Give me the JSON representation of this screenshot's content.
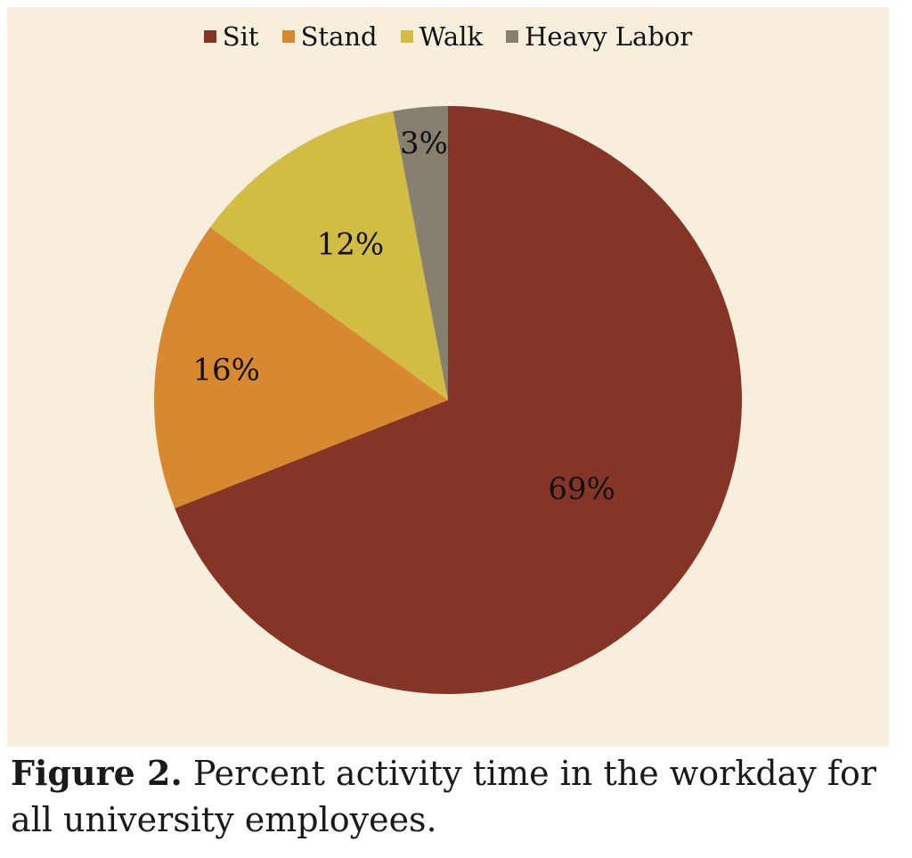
{
  "chart_data": {
    "type": "pie",
    "categories": [
      "Sit",
      "Stand",
      "Walk",
      "Heavy Labor"
    ],
    "values": [
      69,
      16,
      12,
      3
    ],
    "data_labels": [
      "69%",
      "16%",
      "12%",
      "3%"
    ],
    "colors": [
      "#843526",
      "#d8892f",
      "#d1bd44",
      "#878070"
    ],
    "legend": "top",
    "start": "12 o'clock",
    "direction": "clockwise"
  },
  "caption": {
    "label": "Figure 2.",
    "text": "Percent activity time in the workday for all university employees."
  },
  "colors": {
    "panel_background": "#f7efdb"
  }
}
